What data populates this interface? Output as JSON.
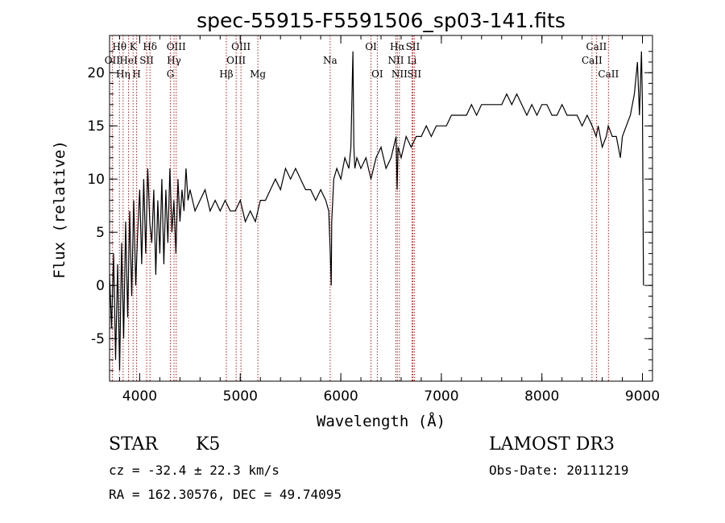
{
  "chart_data": {
    "type": "line",
    "title": "spec-55915-F5591506_sp03-141.fits",
    "xlabel": "Wavelength (Å)",
    "ylabel": "Flux (relative)",
    "xlim": [
      3700,
      9100
    ],
    "ylim": [
      -9,
      23.5
    ],
    "xticks": [
      4000,
      5000,
      6000,
      7000,
      8000,
      9000
    ],
    "yticks": [
      -5,
      0,
      5,
      10,
      15,
      20
    ],
    "spectrum": {
      "name": "flux",
      "x": [
        3700,
        3720,
        3740,
        3760,
        3780,
        3800,
        3820,
        3840,
        3860,
        3880,
        3900,
        3920,
        3940,
        3960,
        3980,
        4000,
        4020,
        4040,
        4060,
        4080,
        4100,
        4120,
        4140,
        4160,
        4180,
        4200,
        4220,
        4240,
        4260,
        4280,
        4300,
        4320,
        4340,
        4360,
        4380,
        4400,
        4420,
        4440,
        4460,
        4480,
        4500,
        4550,
        4600,
        4650,
        4700,
        4750,
        4800,
        4850,
        4900,
        4950,
        5000,
        5050,
        5100,
        5150,
        5200,
        5250,
        5300,
        5350,
        5400,
        5450,
        5500,
        5550,
        5600,
        5650,
        5700,
        5750,
        5800,
        5850,
        5880,
        5895,
        5905,
        5910,
        5930,
        5960,
        6000,
        6040,
        6080,
        6100,
        6120,
        6130,
        6140,
        6160,
        6200,
        6250,
        6300,
        6350,
        6400,
        6450,
        6500,
        6550,
        6560,
        6570,
        6600,
        6650,
        6700,
        6750,
        6800,
        6850,
        6900,
        6950,
        7000,
        7050,
        7100,
        7150,
        7200,
        7250,
        7300,
        7350,
        7400,
        7450,
        7500,
        7550,
        7600,
        7650,
        7700,
        7750,
        7800,
        7850,
        7900,
        7950,
        8000,
        8050,
        8100,
        8150,
        8200,
        8250,
        8300,
        8350,
        8400,
        8450,
        8500,
        8540,
        8560,
        8600,
        8640,
        8660,
        8700,
        8740,
        8780,
        8800,
        8840,
        8880,
        8920,
        8950,
        8970,
        8990,
        9000,
        9010
      ],
      "y": [
        1,
        -4,
        3,
        -7,
        2,
        -8,
        4,
        -5,
        6,
        -3,
        7,
        -1,
        8,
        0,
        5,
        9,
        2,
        10,
        3,
        11,
        6,
        4,
        9,
        1,
        8,
        3,
        10,
        2,
        9,
        4,
        11,
        5,
        8,
        3,
        10,
        6,
        9,
        7,
        11,
        8,
        9,
        7,
        8,
        9,
        7,
        8,
        7,
        8,
        7,
        7,
        8,
        6,
        7,
        6,
        8,
        8,
        9,
        10,
        9,
        11,
        10,
        11,
        10,
        9,
        9,
        8,
        9,
        8,
        7,
        3,
        0,
        6,
        10,
        11,
        10,
        12,
        11,
        13,
        22,
        13,
        11,
        12,
        11,
        12,
        10,
        12,
        13,
        11,
        12,
        14,
        9,
        13,
        12,
        14,
        13,
        14,
        14,
        15,
        14,
        15,
        15,
        15,
        16,
        16,
        16,
        16,
        17,
        16,
        17,
        17,
        17,
        17,
        17,
        18,
        17,
        18,
        17,
        16,
        17,
        16,
        17,
        17,
        16,
        16,
        17,
        16,
        16,
        16,
        15,
        16,
        15,
        14,
        15,
        13,
        14,
        15,
        14,
        14,
        12,
        14,
        15,
        16,
        18,
        21,
        16,
        22,
        17,
        0
      ]
    },
    "lines": [
      {
        "label": "Hθ",
        "x": 3798,
        "row": 0
      },
      {
        "label": "OII",
        "x": 3727,
        "row": 1
      },
      {
        "label": "Hη",
        "x": 3835,
        "row": 2
      },
      {
        "label": "K",
        "x": 3934,
        "row": 0
      },
      {
        "label": "HeI",
        "x": 3889,
        "row": 1
      },
      {
        "label": "H",
        "x": 3969,
        "row": 2
      },
      {
        "label": "Hδ",
        "x": 4102,
        "row": 0
      },
      {
        "label": "SII",
        "x": 4069,
        "row": 1
      },
      {
        "label": "OIII",
        "x": 4363,
        "row": 0
      },
      {
        "label": "Hγ",
        "x": 4341,
        "row": 1
      },
      {
        "label": "G",
        "x": 4305,
        "row": 2
      },
      {
        "label": "OIII",
        "x": 5007,
        "row": 0
      },
      {
        "label": "OIII",
        "x": 4959,
        "row": 1
      },
      {
        "label": "Hβ",
        "x": 4861,
        "row": 2
      },
      {
        "label": "Mg",
        "x": 5175,
        "row": 2
      },
      {
        "label": "Na",
        "x": 5894,
        "row": 1
      },
      {
        "label": "OI",
        "x": 6300,
        "row": 0
      },
      {
        "label": "OI",
        "x": 6363,
        "row": 2
      },
      {
        "label": "Hα",
        "x": 6563,
        "row": 0
      },
      {
        "label": "SII",
        "x": 6716,
        "row": 0
      },
      {
        "label": "NII",
        "x": 6548,
        "row": 1
      },
      {
        "label": "Li",
        "x": 6708,
        "row": 1
      },
      {
        "label": "NII",
        "x": 6583,
        "row": 2
      },
      {
        "label": "SII",
        "x": 6731,
        "row": 2
      },
      {
        "label": "CaII",
        "x": 8542,
        "row": 0
      },
      {
        "label": "CaII",
        "x": 8498,
        "row": 1
      },
      {
        "label": "CaII",
        "x": 8662,
        "row": 2
      }
    ]
  },
  "info": {
    "class": "STAR",
    "subclass": "K5",
    "survey": "LAMOST DR3",
    "cz": "cz = -32.4 ± 22.3 km/s",
    "obs_date": "Obs-Date: 20111219",
    "coords": "RA = 162.30576, DEC =  49.74095"
  },
  "colors": {
    "spectrum": "#000000",
    "line_markers": "#b22222",
    "axes": "#000000"
  }
}
